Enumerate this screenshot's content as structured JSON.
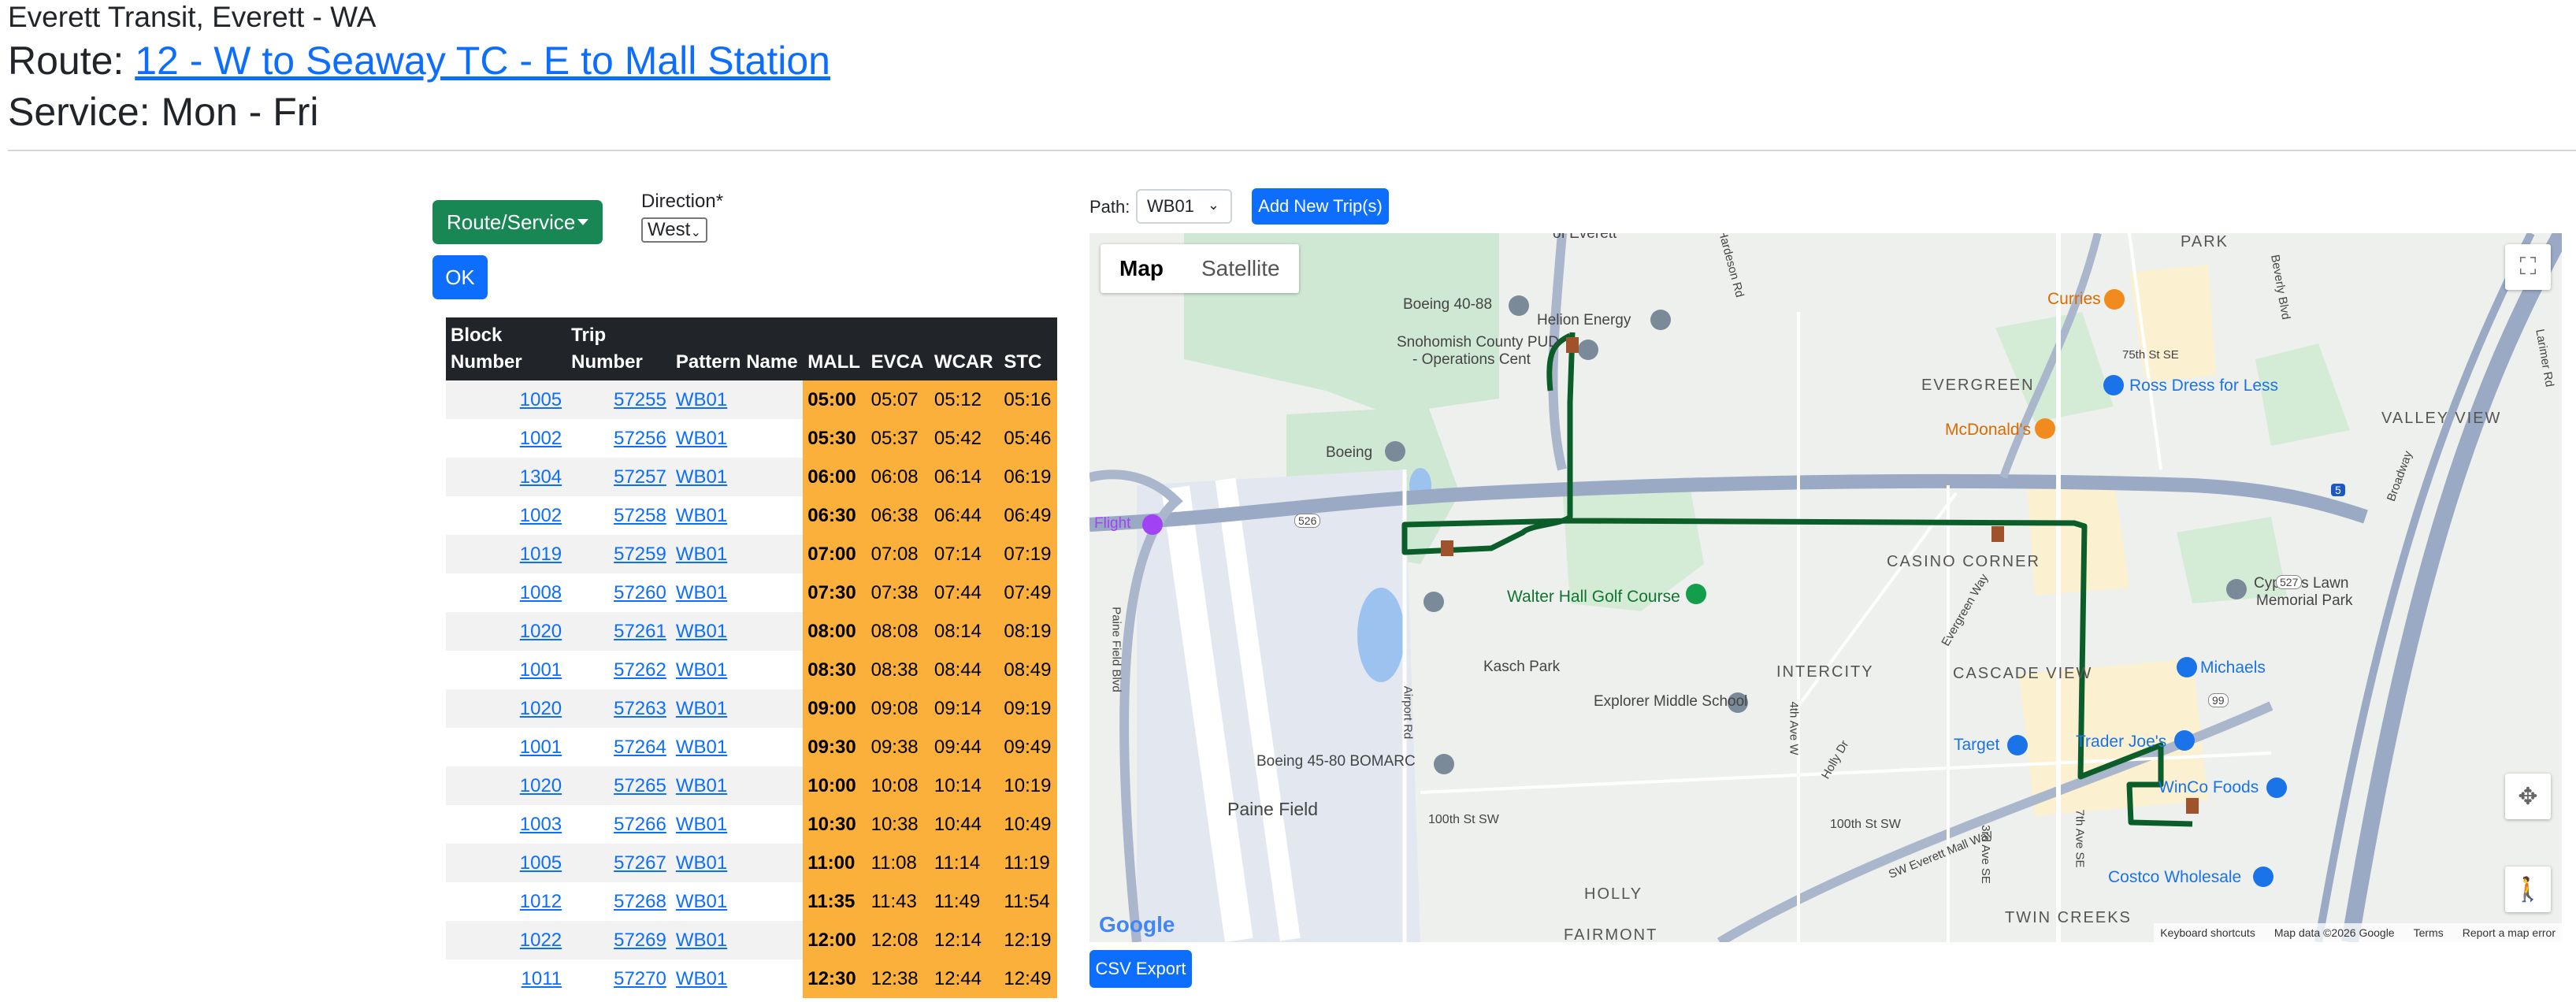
{
  "header": {
    "agency": "Everett Transit, Everett - WA",
    "route_prefix": "Route: ",
    "route_link": "12 - W to Seaway TC - E to Mall Station",
    "service": "Service: Mon - Fri"
  },
  "controls": {
    "route_service_label": "Route/Service",
    "direction_label": "Direction*",
    "direction_value": "West",
    "ok_label": "OK",
    "path_label": "Path:",
    "path_value": "WB01",
    "add_trips_label": "Add New Trip(s)",
    "csv_export_label": "CSV Export"
  },
  "table": {
    "headers": [
      "Block Number",
      "Trip Number",
      "Pattern Name",
      "MALL",
      "EVCA",
      "WCAR",
      "STC"
    ],
    "rows": [
      {
        "block": "1005",
        "trip": "57255",
        "pattern": "WB01",
        "mall": "05:00",
        "evca": "05:07",
        "wcar": "05:12",
        "stc": "05:16"
      },
      {
        "block": "1002",
        "trip": "57256",
        "pattern": "WB01",
        "mall": "05:30",
        "evca": "05:37",
        "wcar": "05:42",
        "stc": "05:46"
      },
      {
        "block": "1304",
        "trip": "57257",
        "pattern": "WB01",
        "mall": "06:00",
        "evca": "06:08",
        "wcar": "06:14",
        "stc": "06:19"
      },
      {
        "block": "1002",
        "trip": "57258",
        "pattern": "WB01",
        "mall": "06:30",
        "evca": "06:38",
        "wcar": "06:44",
        "stc": "06:49"
      },
      {
        "block": "1019",
        "trip": "57259",
        "pattern": "WB01",
        "mall": "07:00",
        "evca": "07:08",
        "wcar": "07:14",
        "stc": "07:19"
      },
      {
        "block": "1008",
        "trip": "57260",
        "pattern": "WB01",
        "mall": "07:30",
        "evca": "07:38",
        "wcar": "07:44",
        "stc": "07:49"
      },
      {
        "block": "1020",
        "trip": "57261",
        "pattern": "WB01",
        "mall": "08:00",
        "evca": "08:08",
        "wcar": "08:14",
        "stc": "08:19"
      },
      {
        "block": "1001",
        "trip": "57262",
        "pattern": "WB01",
        "mall": "08:30",
        "evca": "08:38",
        "wcar": "08:44",
        "stc": "08:49"
      },
      {
        "block": "1020",
        "trip": "57263",
        "pattern": "WB01",
        "mall": "09:00",
        "evca": "09:08",
        "wcar": "09:14",
        "stc": "09:19"
      },
      {
        "block": "1001",
        "trip": "57264",
        "pattern": "WB01",
        "mall": "09:30",
        "evca": "09:38",
        "wcar": "09:44",
        "stc": "09:49"
      },
      {
        "block": "1020",
        "trip": "57265",
        "pattern": "WB01",
        "mall": "10:00",
        "evca": "10:08",
        "wcar": "10:14",
        "stc": "10:19"
      },
      {
        "block": "1003",
        "trip": "57266",
        "pattern": "WB01",
        "mall": "10:30",
        "evca": "10:38",
        "wcar": "10:44",
        "stc": "10:49"
      },
      {
        "block": "1005",
        "trip": "57267",
        "pattern": "WB01",
        "mall": "11:00",
        "evca": "11:08",
        "wcar": "11:14",
        "stc": "11:19"
      },
      {
        "block": "1012",
        "trip": "57268",
        "pattern": "WB01",
        "mall": "11:35",
        "evca": "11:43",
        "wcar": "11:49",
        "stc": "11:54"
      },
      {
        "block": "1022",
        "trip": "57269",
        "pattern": "WB01",
        "mall": "12:00",
        "evca": "12:08",
        "wcar": "12:14",
        "stc": "12:19"
      },
      {
        "block": "1011",
        "trip": "57270",
        "pattern": "WB01",
        "mall": "12:30",
        "evca": "12:38",
        "wcar": "12:44",
        "stc": "12:49"
      }
    ]
  },
  "map": {
    "tab_map": "Map",
    "tab_satellite": "Satellite",
    "labels": {
      "of_everett": "of Everett",
      "park": "PARK",
      "boeing_4088": "Boeing 40-88",
      "helion": "Helion Energy",
      "snohomish": "Snohomish County PUD",
      "operations": "- Operations Cent",
      "curries": "Curries",
      "evergreen": "EVERGREEN",
      "ross": "Ross Dress for Less",
      "mcdonalds": "McDonald's",
      "valley_view": "VALLEY VIEW",
      "boeing": "Boeing",
      "flight": "Flight",
      "casino_corner": "CASINO CORNER",
      "cypress": "Cypress Lawn",
      "memorial": "Memorial Park",
      "walter_hall": "Walter Hall Golf Course",
      "kasch": "Kasch Park",
      "intercity": "INTERCITY",
      "cascade_view": "CASCADE VIEW",
      "michaels": "Michaels",
      "explorer": "Explorer Middle School",
      "target": "Target",
      "trader_joes": "Trader Joe's",
      "boeing_4580": "Boeing 45-80 BOMARC",
      "winco": "WinCo Foods",
      "paine_field": "Paine Field",
      "st_100": "100th St SW",
      "st_100_b": "100th St SW",
      "costco": "Costco Wholesale",
      "holly": "HOLLY",
      "fairmont": "FAIRMONT",
      "twin_creeks": "TWIN CREEKS",
      "paine_field_blvd": "Paine Field Blvd",
      "airport_rd": "Airport Rd",
      "hardeson": "Hardeson Rd",
      "beverly": "Beverly Blvd",
      "broadway": "Broadway",
      "larimer": "Larimer Rd",
      "st_75": "75th St SE",
      "sw_everett_mall": "SW Everett Mall Way",
      "ave_7": "7th Ave SE",
      "ave_4": "4th Ave W",
      "ave_3": "3rd Ave SE",
      "evergreen_way": "Evergreen Way",
      "holly_dr": "Holly Dr",
      "hwy_526": "526",
      "hwy_527": "527",
      "hwy_99": "99",
      "hwy_5": "5",
      "google": "Google"
    },
    "footer": {
      "shortcuts": "Keyboard shortcuts",
      "mapdata": "Map data ©2026 Google",
      "terms": "Terms",
      "report": "Report a map error"
    },
    "route_color": "#0b5e2a"
  }
}
